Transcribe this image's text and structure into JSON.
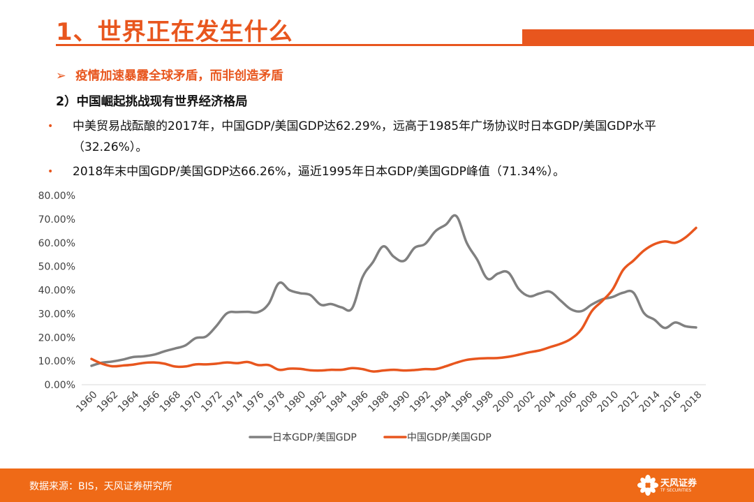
{
  "slide": {
    "title": "1、世界正在发生什么",
    "headline": "疫情加速暴露全球矛盾，而非创造矛盾",
    "headline_marker": "➢",
    "subhead": "2）中国崛起挑战现有世界经济格局",
    "bullet_marker": "•",
    "bullets": [
      "中美贸易战酝酿的2017年，中国GDP/美国GDP达62.29%，远高于1985年广场协议时日本GDP/美国GDP水平（32.26%）。",
      "2018年末中国GDP/美国GDP达66.26%，逼近1995年日本GDP/美国GDP峰值（71.34%）。"
    ]
  },
  "footer": {
    "source": "数据来源：BIS，天风证券研究所",
    "logo_text": "天风证券",
    "logo_subtext": "TF SECURITIES",
    "background": "#ef6a17"
  },
  "colors": {
    "accent": "#e8561e",
    "japan_series": "#808080",
    "china_series": "#e8561e"
  },
  "chart_data": {
    "type": "line",
    "title": "",
    "xlabel": "",
    "ylabel": "",
    "ylim": [
      0,
      80
    ],
    "y_ticks": [
      "0.00%",
      "10.00%",
      "20.00%",
      "30.00%",
      "40.00%",
      "50.00%",
      "60.00%",
      "70.00%",
      "80.00%"
    ],
    "x": [
      1960,
      1961,
      1962,
      1963,
      1964,
      1965,
      1966,
      1967,
      1968,
      1969,
      1970,
      1971,
      1972,
      1973,
      1974,
      1975,
      1976,
      1977,
      1978,
      1979,
      1980,
      1981,
      1982,
      1983,
      1984,
      1985,
      1986,
      1987,
      1988,
      1989,
      1990,
      1991,
      1992,
      1993,
      1994,
      1995,
      1996,
      1997,
      1998,
      1999,
      2000,
      2001,
      2002,
      2003,
      2004,
      2005,
      2006,
      2007,
      2008,
      2009,
      2010,
      2011,
      2012,
      2013,
      2014,
      2015,
      2016,
      2017,
      2018
    ],
    "x_tick_labels": [
      "1960",
      "1962",
      "1964",
      "1966",
      "1968",
      "1970",
      "1972",
      "1974",
      "1976",
      "1978",
      "1980",
      "1982",
      "1984",
      "1986",
      "1988",
      "1990",
      "1992",
      "1994",
      "1996",
      "1998",
      "2000",
      "2002",
      "2004",
      "2006",
      "2008",
      "2010",
      "2012",
      "2014",
      "2016",
      "2018"
    ],
    "legend_position": "bottom",
    "grid": false,
    "series": [
      {
        "name": "日本GDP/美国GDP",
        "color": "#808080",
        "values": [
          8.0,
          9.3,
          9.8,
          10.6,
          11.7,
          12.0,
          12.7,
          14.1,
          15.3,
          16.6,
          19.7,
          20.4,
          24.9,
          30.2,
          30.7,
          30.8,
          30.7,
          34.2,
          43.0,
          40.0,
          38.7,
          37.9,
          33.8,
          34.1,
          32.7,
          32.3,
          45.4,
          51.8,
          58.5,
          54.1,
          52.4,
          57.9,
          59.5,
          64.9,
          67.7,
          71.3,
          60.0,
          52.9,
          44.8,
          47.0,
          47.4,
          40.4,
          37.4,
          38.6,
          39.3,
          35.6,
          31.9,
          31.1,
          33.9,
          36.1,
          37.1,
          38.9,
          38.9,
          30.3,
          27.5,
          24.0,
          26.3,
          24.7,
          24.2
        ]
      },
      {
        "name": "中国GDP/美国GDP",
        "color": "#e8561e",
        "values": [
          10.9,
          8.9,
          7.8,
          8.1,
          8.5,
          9.2,
          9.4,
          8.9,
          7.7,
          7.7,
          8.6,
          8.6,
          8.9,
          9.4,
          9.1,
          9.6,
          8.3,
          8.3,
          6.3,
          6.8,
          6.7,
          6.1,
          6.0,
          6.3,
          6.3,
          7.0,
          6.6,
          5.6,
          6.0,
          6.3,
          6.0,
          6.2,
          6.6,
          6.6,
          7.8,
          9.3,
          10.5,
          11.0,
          11.2,
          11.3,
          11.8,
          12.7,
          13.7,
          14.5,
          15.9,
          17.3,
          19.4,
          23.4,
          31.1,
          35.4,
          40.3,
          48.5,
          52.5,
          56.7,
          59.4,
          60.6,
          60.0,
          62.3,
          66.3
        ]
      }
    ]
  }
}
